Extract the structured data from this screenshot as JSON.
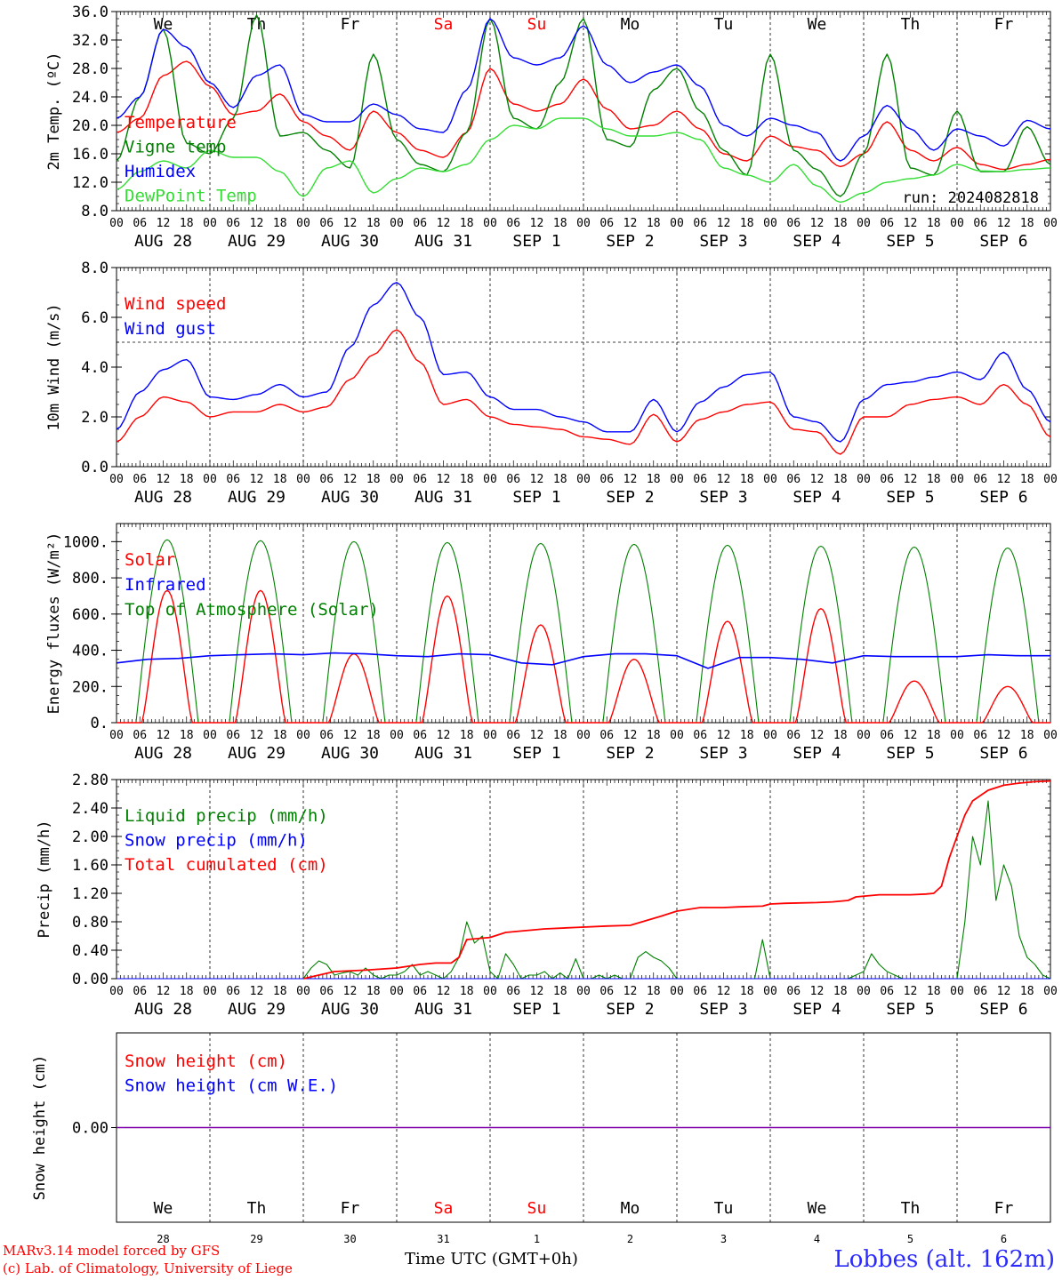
{
  "footer": {
    "model_credit": "MARv3.14 model forced by GFS",
    "lab_credit": "(c) Lab. of Climatology, University of Liege",
    "x_axis_title": "Time UTC (GMT+0h)",
    "station": "Lobbes (alt. 162m)"
  },
  "hour_ticks": [
    "00",
    "06",
    "12",
    "18"
  ],
  "last_hour_tick": "00",
  "days": [
    {
      "dow": "We",
      "date": "AUG 28",
      "daynum": "28",
      "weekend": false
    },
    {
      "dow": "Th",
      "date": "AUG 29",
      "daynum": "29",
      "weekend": false
    },
    {
      "dow": "Fr",
      "date": "AUG 30",
      "daynum": "30",
      "weekend": false
    },
    {
      "dow": "Sa",
      "date": "AUG 31",
      "daynum": "31",
      "weekend": true
    },
    {
      "dow": "Su",
      "date": "SEP  1",
      "daynum": "1",
      "weekend": true
    },
    {
      "dow": "Mo",
      "date": "SEP  2",
      "daynum": "2",
      "weekend": false
    },
    {
      "dow": "Tu",
      "date": "SEP  3",
      "daynum": "3",
      "weekend": false
    },
    {
      "dow": "We",
      "date": "SEP  4",
      "daynum": "4",
      "weekend": false
    },
    {
      "dow": "Th",
      "date": "SEP  5",
      "daynum": "5",
      "weekend": false
    },
    {
      "dow": "Fr",
      "date": "SEP  6",
      "daynum": "6",
      "weekend": false
    }
  ],
  "colors": {
    "red": "#ff0000",
    "green": "#008000",
    "blue": "#0000ff",
    "lightgreen": "#33dd33",
    "purple": "#7f00aa",
    "weekend": "#ff0000"
  },
  "chart_data": [
    {
      "id": "temp",
      "type": "line",
      "ylabel": "2m Temp. (ºC)",
      "ylim": [
        8,
        36
      ],
      "ytick_labels": [
        "8.0",
        "12.0",
        "16.0",
        "20.0",
        "24.0",
        "28.0",
        "32.0",
        "36.0"
      ],
      "yticks": [
        8,
        12,
        16,
        20,
        24,
        28,
        32,
        36
      ],
      "show_dow": true,
      "run_label": "run: 2024082818",
      "x": [
        0,
        6,
        12,
        18,
        24,
        30,
        36,
        42,
        48,
        54,
        60,
        66,
        72,
        78,
        84,
        90,
        96,
        102,
        108,
        114,
        120,
        126,
        132,
        138,
        144,
        150,
        156,
        162,
        168,
        174,
        180,
        186,
        192,
        198,
        204,
        210,
        216,
        222,
        228,
        234,
        240
      ],
      "series": [
        {
          "name": "Temperature",
          "color": "red",
          "values": [
            19,
            21,
            27,
            29,
            25.5,
            21.5,
            22,
            24.4,
            20.5,
            18.5,
            16.5,
            22,
            19,
            16.5,
            15.5,
            19,
            28,
            23,
            22,
            23,
            26.5,
            22.3,
            19.5,
            20,
            22,
            19.5,
            16,
            15,
            18.5,
            17,
            16.5,
            14.2,
            16,
            20.5,
            16.5,
            15,
            16.9,
            14.5,
            13.8,
            14.5,
            15.2
          ]
        },
        {
          "name": "Vigne temp",
          "color": "green",
          "values": [
            15,
            24,
            33.5,
            17.5,
            16,
            21,
            35.5,
            18.5,
            19,
            16.5,
            14,
            30,
            18,
            14.5,
            13.5,
            19,
            35,
            21,
            19.5,
            26,
            35,
            18,
            17,
            25,
            28,
            22,
            16.5,
            13,
            30,
            16.5,
            13.8,
            10,
            16,
            30,
            14,
            13,
            22,
            13.5,
            13.5,
            19.8,
            14.5
          ]
        },
        {
          "name": "Humidex",
          "color": "blue",
          "values": [
            21,
            24,
            33.5,
            31,
            26,
            22.5,
            27,
            28.5,
            21.5,
            20.5,
            20.5,
            23,
            21.5,
            19.5,
            19,
            25,
            35,
            29.5,
            28.5,
            29.5,
            34,
            28.5,
            26,
            27.5,
            28.5,
            25.5,
            20,
            18.5,
            21,
            20,
            19,
            15,
            18.5,
            22.8,
            19.5,
            16.5,
            19.5,
            18.5,
            17.1,
            20.7,
            19.5
          ]
        },
        {
          "name": "DewPoint Temp",
          "color": "lightgreen",
          "values": [
            11,
            13.5,
            15,
            14,
            16.5,
            15.5,
            15.5,
            13.5,
            10,
            14,
            15,
            10.5,
            12.5,
            14,
            13.5,
            14.5,
            18,
            20,
            19.5,
            21,
            21,
            19.5,
            18.5,
            18.5,
            19,
            18,
            14,
            13,
            12,
            14.5,
            11.5,
            9.2,
            10.5,
            12,
            12.5,
            13,
            14.5,
            13.6,
            13.5,
            13.8,
            14
          ]
        }
      ]
    },
    {
      "id": "wind",
      "type": "line",
      "ylabel": "10m Wind (m/s)",
      "ylim": [
        0,
        8
      ],
      "ytick_labels": [
        "0.0",
        "2.0",
        "4.0",
        "6.0",
        "8.0"
      ],
      "yticks": [
        0,
        2,
        4,
        6,
        8
      ],
      "dashed_line": 5,
      "x": [
        0,
        6,
        12,
        18,
        24,
        30,
        36,
        42,
        48,
        54,
        60,
        66,
        72,
        78,
        84,
        90,
        96,
        102,
        108,
        114,
        120,
        126,
        132,
        138,
        144,
        150,
        156,
        162,
        168,
        174,
        180,
        186,
        192,
        198,
        204,
        210,
        216,
        222,
        228,
        234,
        240
      ],
      "series": [
        {
          "name": "Wind speed",
          "color": "red",
          "values": [
            1,
            2,
            2.8,
            2.6,
            2,
            2.2,
            2.2,
            2.5,
            2.2,
            2.4,
            3.5,
            4.5,
            5.5,
            4.2,
            2.5,
            2.7,
            2,
            1.7,
            1.6,
            1.5,
            1.2,
            1.1,
            0.9,
            2.1,
            1,
            1.9,
            2.2,
            2.5,
            2.6,
            1.5,
            1.4,
            0.5,
            2,
            2,
            2.5,
            2.7,
            2.8,
            2.5,
            3.3,
            2.5,
            1.2
          ]
        },
        {
          "name": "Wind gust",
          "color": "blue",
          "values": [
            1.5,
            3,
            3.9,
            4.3,
            2.8,
            2.7,
            2.9,
            3.3,
            2.8,
            3,
            4.8,
            6.5,
            7.4,
            6,
            3.7,
            3.8,
            2.8,
            2.3,
            2.3,
            2,
            1.8,
            1.4,
            1.4,
            2.7,
            1.4,
            2.6,
            3.2,
            3.7,
            3.8,
            2,
            1.8,
            1,
            2.7,
            3.3,
            3.4,
            3.6,
            3.8,
            3.5,
            4.6,
            3.1,
            1.8
          ]
        }
      ]
    },
    {
      "id": "energy",
      "type": "line",
      "ylabel": "Energy fluxes (W/m²)",
      "ylim": [
        0,
        1100
      ],
      "ytick_labels": [
        "0.",
        "200.",
        "400.",
        "600.",
        "800.",
        "1000."
      ],
      "yticks": [
        0,
        200,
        400,
        600,
        800,
        1000
      ],
      "top_of_atmosphere_peaks": [
        1010,
        1005,
        1000,
        995,
        990,
        985,
        980,
        975,
        970,
        965
      ],
      "solar_peaks": [
        730,
        730,
        380,
        700,
        540,
        350,
        560,
        630,
        230,
        200
      ],
      "infrared": [
        330,
        350,
        355,
        370,
        375,
        380,
        375,
        385,
        380,
        370,
        365,
        380,
        375,
        330,
        320,
        365,
        380,
        380,
        370,
        300,
        360,
        360,
        350,
        330,
        370,
        365,
        365,
        365,
        375,
        370,
        370
      ],
      "series": [
        {
          "name": "Solar",
          "color": "red"
        },
        {
          "name": "Infrared",
          "color": "blue"
        },
        {
          "name": "Top of Atmosphere (Solar)",
          "color": "green"
        }
      ]
    },
    {
      "id": "precip",
      "type": "line",
      "ylabel": "Precip (mm/h)",
      "ylim": [
        0,
        2.8
      ],
      "ytick_labels": [
        "0.00",
        "0.40",
        "0.80",
        "1.20",
        "1.60",
        "2.00",
        "2.40",
        "2.80"
      ],
      "yticks": [
        0,
        0.4,
        0.8,
        1.2,
        1.6,
        2.0,
        2.4,
        2.8
      ],
      "series": [
        {
          "name": "Liquid precip (mm/h)",
          "color": "green",
          "x": [
            0,
            48,
            50,
            52,
            54,
            56,
            58,
            60,
            62,
            64,
            66,
            68,
            70,
            72,
            74,
            76,
            78,
            80,
            82,
            84,
            86,
            88,
            90,
            92,
            94,
            96,
            98,
            100,
            102,
            104,
            106,
            108,
            110,
            112,
            114,
            116,
            118,
            120,
            122,
            124,
            126,
            128,
            130,
            132,
            134,
            136,
            138,
            140,
            142,
            144,
            146,
            148,
            150,
            152,
            154,
            156,
            158,
            160,
            162,
            164,
            166,
            168,
            170,
            172,
            174,
            176,
            178,
            180,
            182,
            184,
            186,
            188,
            190,
            192,
            194,
            196,
            198,
            200,
            202,
            204,
            206,
            208,
            210,
            212,
            214,
            216,
            218,
            220,
            222,
            224,
            226,
            228,
            230,
            232,
            234,
            236,
            238,
            240
          ],
          "values": [
            0,
            0,
            0.15,
            0.25,
            0.2,
            0.05,
            0.08,
            0.1,
            0.05,
            0.15,
            0.05,
            0,
            0.05,
            0.05,
            0.1,
            0.2,
            0.05,
            0.1,
            0.05,
            0,
            0.1,
            0.3,
            0.8,
            0.5,
            0.6,
            0.1,
            0,
            0.35,
            0.2,
            0,
            0.05,
            0.05,
            0.1,
            0,
            0.08,
            0,
            0.28,
            0,
            0,
            0.05,
            0,
            0.05,
            0,
            0,
            0.3,
            0.38,
            0.3,
            0.25,
            0.15,
            0,
            0,
            0,
            0,
            0,
            0,
            0,
            0,
            0,
            0,
            0,
            0.55,
            0,
            0,
            0,
            0,
            0,
            0,
            0,
            0,
            0,
            0,
            0,
            0.05,
            0.1,
            0.35,
            0.2,
            0.1,
            0.05,
            0,
            0,
            0,
            0,
            0,
            0,
            0,
            0,
            0.8,
            2.0,
            1.6,
            2.5,
            1.1,
            1.6,
            1.3,
            0.6,
            0.3,
            0.2,
            0.05,
            0
          ]
        },
        {
          "name": "Snow precip (mm/h)",
          "color": "blue",
          "x": [
            0,
            240
          ],
          "values": [
            0,
            0
          ]
        },
        {
          "name": "Total cumulated (cm)",
          "color": "red",
          "x": [
            48,
            56,
            64,
            72,
            78,
            82,
            86,
            88,
            90,
            96,
            100,
            104,
            110,
            118,
            126,
            132,
            140,
            144,
            150,
            156,
            160,
            166,
            168,
            172,
            180,
            184,
            188,
            190,
            196,
            204,
            208,
            210,
            212,
            214,
            216,
            218,
            220,
            224,
            228,
            232,
            236,
            240
          ],
          "values": [
            0,
            0.1,
            0.12,
            0.15,
            0.2,
            0.22,
            0.22,
            0.3,
            0.55,
            0.58,
            0.65,
            0.67,
            0.7,
            0.72,
            0.74,
            0.75,
            0.88,
            0.95,
            1.0,
            1.0,
            1.01,
            1.02,
            1.05,
            1.06,
            1.07,
            1.08,
            1.1,
            1.15,
            1.18,
            1.18,
            1.19,
            1.2,
            1.3,
            1.7,
            2.0,
            2.3,
            2.5,
            2.65,
            2.72,
            2.75,
            2.77,
            2.78
          ]
        }
      ]
    },
    {
      "id": "snow",
      "type": "line",
      "ylabel": "Snow height (cm)",
      "ylim": [
        -1,
        1
      ],
      "ytick_labels": [
        "0.00"
      ],
      "yticks": [
        0
      ],
      "x": [
        0,
        240
      ],
      "series": [
        {
          "name": "Snow height (cm)",
          "color": "red",
          "values": [
            0,
            0
          ]
        },
        {
          "name": "Snow height (cm W.E.)",
          "color": "blue",
          "values": [
            0,
            0
          ]
        }
      ]
    }
  ]
}
